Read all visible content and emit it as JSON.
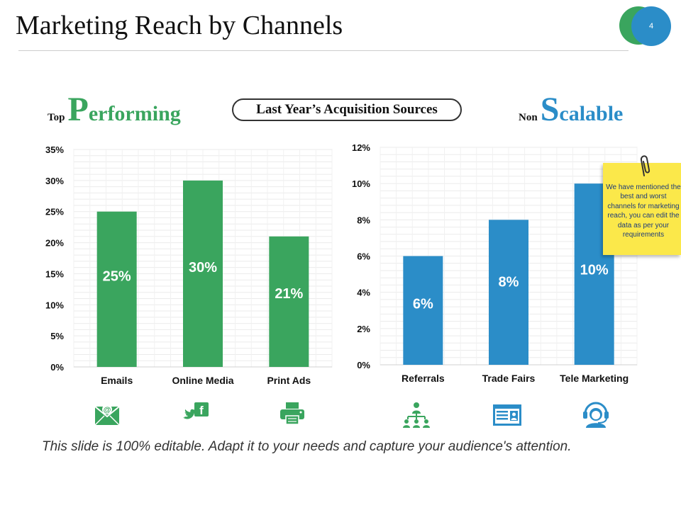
{
  "slide": {
    "title": "Marketing Reach by Channels",
    "page_number": "4",
    "center_label": "Last Year’s Acquisition Sources",
    "left_heading": {
      "prefix": "Top",
      "big_letter": "P",
      "rest": "erforming",
      "color": "#3aa55e"
    },
    "right_heading": {
      "prefix": "Non",
      "big_letter": "S",
      "rest": "calable",
      "color": "#2b8dc8"
    },
    "sticky_note": "We have mentioned the best and worst channels for marketing reach, you can edit the data as per your requirements",
    "footer": "This slide is 100% editable.  Adapt it to your needs and capture your audience's attention."
  },
  "chart_data": [
    {
      "type": "bar",
      "name": "top-performing",
      "categories": [
        "Emails",
        "Online Media",
        "Print Ads"
      ],
      "values": [
        25,
        30,
        21
      ],
      "data_labels": [
        "25%",
        "30%",
        "21%"
      ],
      "ylim": [
        0,
        35
      ],
      "yticks": [
        0,
        5,
        10,
        15,
        20,
        25,
        30,
        35
      ],
      "tick_suffix": "%",
      "color": "#3aa55e",
      "grid": true,
      "icons": [
        "email-icon",
        "social-media-icon",
        "printer-icon"
      ]
    },
    {
      "type": "bar",
      "name": "non-scalable",
      "categories": [
        "Referrals",
        "Trade Fairs",
        "Tele Marketing"
      ],
      "values": [
        6,
        8,
        10
      ],
      "data_labels": [
        "6%",
        "8%",
        "10%"
      ],
      "ylim": [
        0,
        12
      ],
      "yticks": [
        0,
        2,
        4,
        6,
        8,
        10,
        12
      ],
      "tick_suffix": "%",
      "color": "#2b8dc8",
      "grid": true,
      "icons": [
        "network-icon",
        "id-card-icon",
        "headset-operator-icon"
      ]
    }
  ]
}
